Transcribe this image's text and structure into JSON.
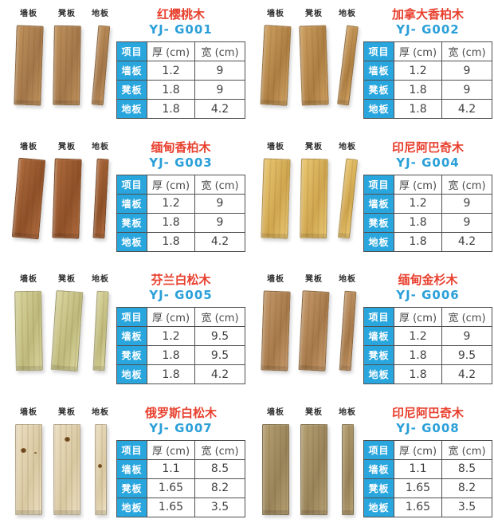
{
  "page": {
    "background": "#ffffff"
  },
  "colors": {
    "accent_cyan": "#29a6de",
    "title_red": "#e8402e",
    "model_blue": "#2a9fd8",
    "table_border": "#4f4f4f",
    "value_text": "#3f3f3f",
    "board_label_text": "#2f2f2f"
  },
  "board_labels": [
    "墙板",
    "凳板",
    "地板"
  ],
  "table_headers": [
    "项目",
    "厚 (cm)",
    "宽 (cm)"
  ],
  "products": [
    {
      "title": "红樱桃木",
      "model": "YJ- G001",
      "rows": [
        {
          "label": "墙板",
          "thickness": "1.2",
          "width": "9"
        },
        {
          "label": "凳板",
          "thickness": "1.8",
          "width": "9"
        },
        {
          "label": "地板",
          "thickness": "1.8",
          "width": "4.2"
        }
      ],
      "wood": {
        "color_light": "#c0925c",
        "color_dark": "#a3774a",
        "tilts": [
          2,
          1,
          5
        ],
        "knots": false,
        "straight": false
      }
    },
    {
      "title": "加拿大香柏木",
      "model": "YJ- G002",
      "rows": [
        {
          "label": "墙板",
          "thickness": "1.2",
          "width": "9"
        },
        {
          "label": "凳板",
          "thickness": "1.8",
          "width": "9"
        },
        {
          "label": "地板",
          "thickness": "1.8",
          "width": "4.2"
        }
      ],
      "wood": {
        "color_light": "#cfa263",
        "color_dark": "#ad7e42",
        "tilts": [
          3,
          -2,
          7
        ],
        "knots": false,
        "straight": false
      }
    },
    {
      "title": "缅甸香柏木",
      "model": "YJ- G003",
      "rows": [
        {
          "label": "墙板",
          "thickness": "1.2",
          "width": "9"
        },
        {
          "label": "凳板",
          "thickness": "1.8",
          "width": "9"
        },
        {
          "label": "地板",
          "thickness": "1.8",
          "width": "4.2"
        }
      ],
      "wood": {
        "color_light": "#b06c3e",
        "color_dark": "#8e5129",
        "tilts": [
          5,
          2,
          3
        ],
        "knots": false,
        "straight": false
      }
    },
    {
      "title": "印尼阿巴奇木",
      "model": "YJ- G004",
      "rows": [
        {
          "label": "墙板",
          "thickness": "1.2",
          "width": "9"
        },
        {
          "label": "凳板",
          "thickness": "1.8",
          "width": "9"
        },
        {
          "label": "地板",
          "thickness": "1.8",
          "width": "4.2"
        }
      ],
      "wood": {
        "color_light": "#eac873",
        "color_dark": "#d0a64f",
        "tilts": [
          2,
          1,
          6
        ],
        "knots": false,
        "straight": false
      }
    },
    {
      "title": "芬兰白松木",
      "model": "YJ- G005",
      "rows": [
        {
          "label": "墙板",
          "thickness": "1.2",
          "width": "9.5"
        },
        {
          "label": "凳板",
          "thickness": "1.8",
          "width": "9.5"
        },
        {
          "label": "地板",
          "thickness": "1.8",
          "width": "4.2"
        }
      ],
      "wood": {
        "color_light": "#dbd7a0",
        "color_dark": "#bfba7c",
        "tilts": [
          -1,
          4,
          3
        ],
        "knots": false,
        "straight": false
      }
    },
    {
      "title": "缅甸金杉木",
      "model": "YJ- G006",
      "rows": [
        {
          "label": "墙板",
          "thickness": "1.2",
          "width": "9"
        },
        {
          "label": "凳板",
          "thickness": "1.8",
          "width": "9.5"
        },
        {
          "label": "地板",
          "thickness": "1.8",
          "width": "4.2"
        }
      ],
      "wood": {
        "color_light": "#c69a6c",
        "color_dark": "#a67a4a",
        "tilts": [
          2,
          3,
          4
        ],
        "knots": false,
        "straight": false
      }
    },
    {
      "title": "俄罗斯白松木",
      "model": "YJ- G007",
      "rows": [
        {
          "label": "墙板",
          "thickness": "1.1",
          "width": "8.5"
        },
        {
          "label": "凳板",
          "thickness": "1.65",
          "width": "8.2"
        },
        {
          "label": "地板",
          "thickness": "1.65",
          "width": "3.5"
        }
      ],
      "wood": {
        "color_light": "#ecdfc2",
        "color_dark": "#d9c9a2",
        "tilts": [
          0,
          0,
          0
        ],
        "knots": true,
        "straight": true
      }
    },
    {
      "title": "印尼阿巴奇木",
      "model": "YJ- G008",
      "rows": [
        {
          "label": "墙板",
          "thickness": "1.1",
          "width": "8.5"
        },
        {
          "label": "凳板",
          "thickness": "1.65",
          "width": "8.2"
        },
        {
          "label": "地板",
          "thickness": "1.65",
          "width": "3.5"
        }
      ],
      "wood": {
        "color_light": "#b6a173",
        "color_dark": "#99835a",
        "tilts": [
          0,
          0,
          0
        ],
        "knots": false,
        "straight": true
      }
    }
  ]
}
